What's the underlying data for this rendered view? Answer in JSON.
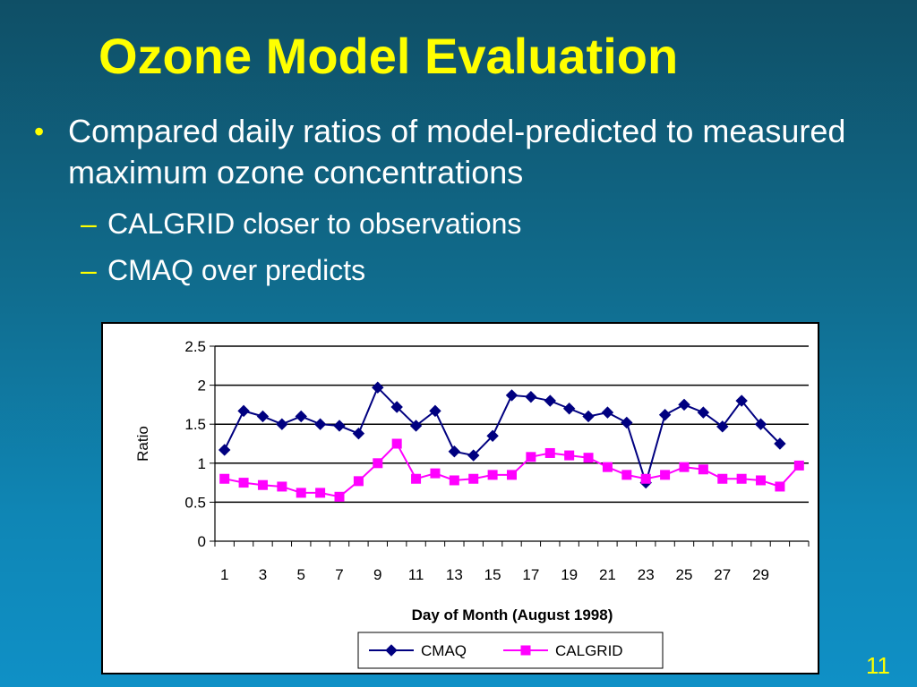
{
  "slide": {
    "title": "Ozone Model Evaluation",
    "bullet": "Compared daily ratios of model-predicted to measured maximum ozone concentrations",
    "subbullets": [
      "CALGRID closer to observations",
      "CMAQ over predicts"
    ],
    "page_number": "11"
  },
  "chart_data": {
    "type": "line",
    "title": "",
    "xlabel": "Day of Month (August 1998)",
    "ylabel": "Ratio",
    "ylim": [
      0,
      2.5
    ],
    "yticks": [
      "0",
      "0.5",
      "1",
      "1.5",
      "2",
      "2.5"
    ],
    "x": [
      1,
      2,
      3,
      4,
      5,
      6,
      7,
      8,
      9,
      10,
      11,
      12,
      13,
      14,
      15,
      16,
      17,
      18,
      19,
      20,
      21,
      22,
      23,
      24,
      25,
      26,
      27,
      28,
      29,
      30,
      31
    ],
    "xtick_labels": [
      "1",
      "3",
      "5",
      "7",
      "9",
      "11",
      "13",
      "15",
      "17",
      "19",
      "21",
      "23",
      "25",
      "27",
      "29"
    ],
    "grid": "horizontal",
    "legend_position": "bottom",
    "series": [
      {
        "name": "CMAQ",
        "color": "#000080",
        "marker": "diamond",
        "values": [
          1.17,
          1.67,
          1.6,
          1.5,
          1.6,
          1.5,
          1.48,
          1.38,
          1.97,
          1.72,
          1.48,
          1.67,
          1.15,
          1.1,
          1.35,
          1.87,
          1.85,
          1.8,
          1.7,
          1.6,
          1.65,
          1.52,
          0.75,
          1.62,
          1.75,
          1.65,
          1.47,
          1.8,
          1.5,
          1.25,
          null
        ]
      },
      {
        "name": "CALGRID",
        "color": "#ff00ff",
        "marker": "square",
        "values": [
          0.8,
          0.75,
          0.72,
          0.7,
          0.62,
          0.62,
          0.57,
          0.77,
          1.0,
          1.25,
          0.8,
          0.87,
          0.78,
          0.8,
          0.85,
          0.85,
          1.08,
          1.13,
          1.1,
          1.07,
          0.95,
          0.85,
          0.8,
          0.85,
          0.95,
          0.92,
          0.8,
          0.8,
          0.78,
          0.7,
          0.97
        ]
      }
    ]
  }
}
